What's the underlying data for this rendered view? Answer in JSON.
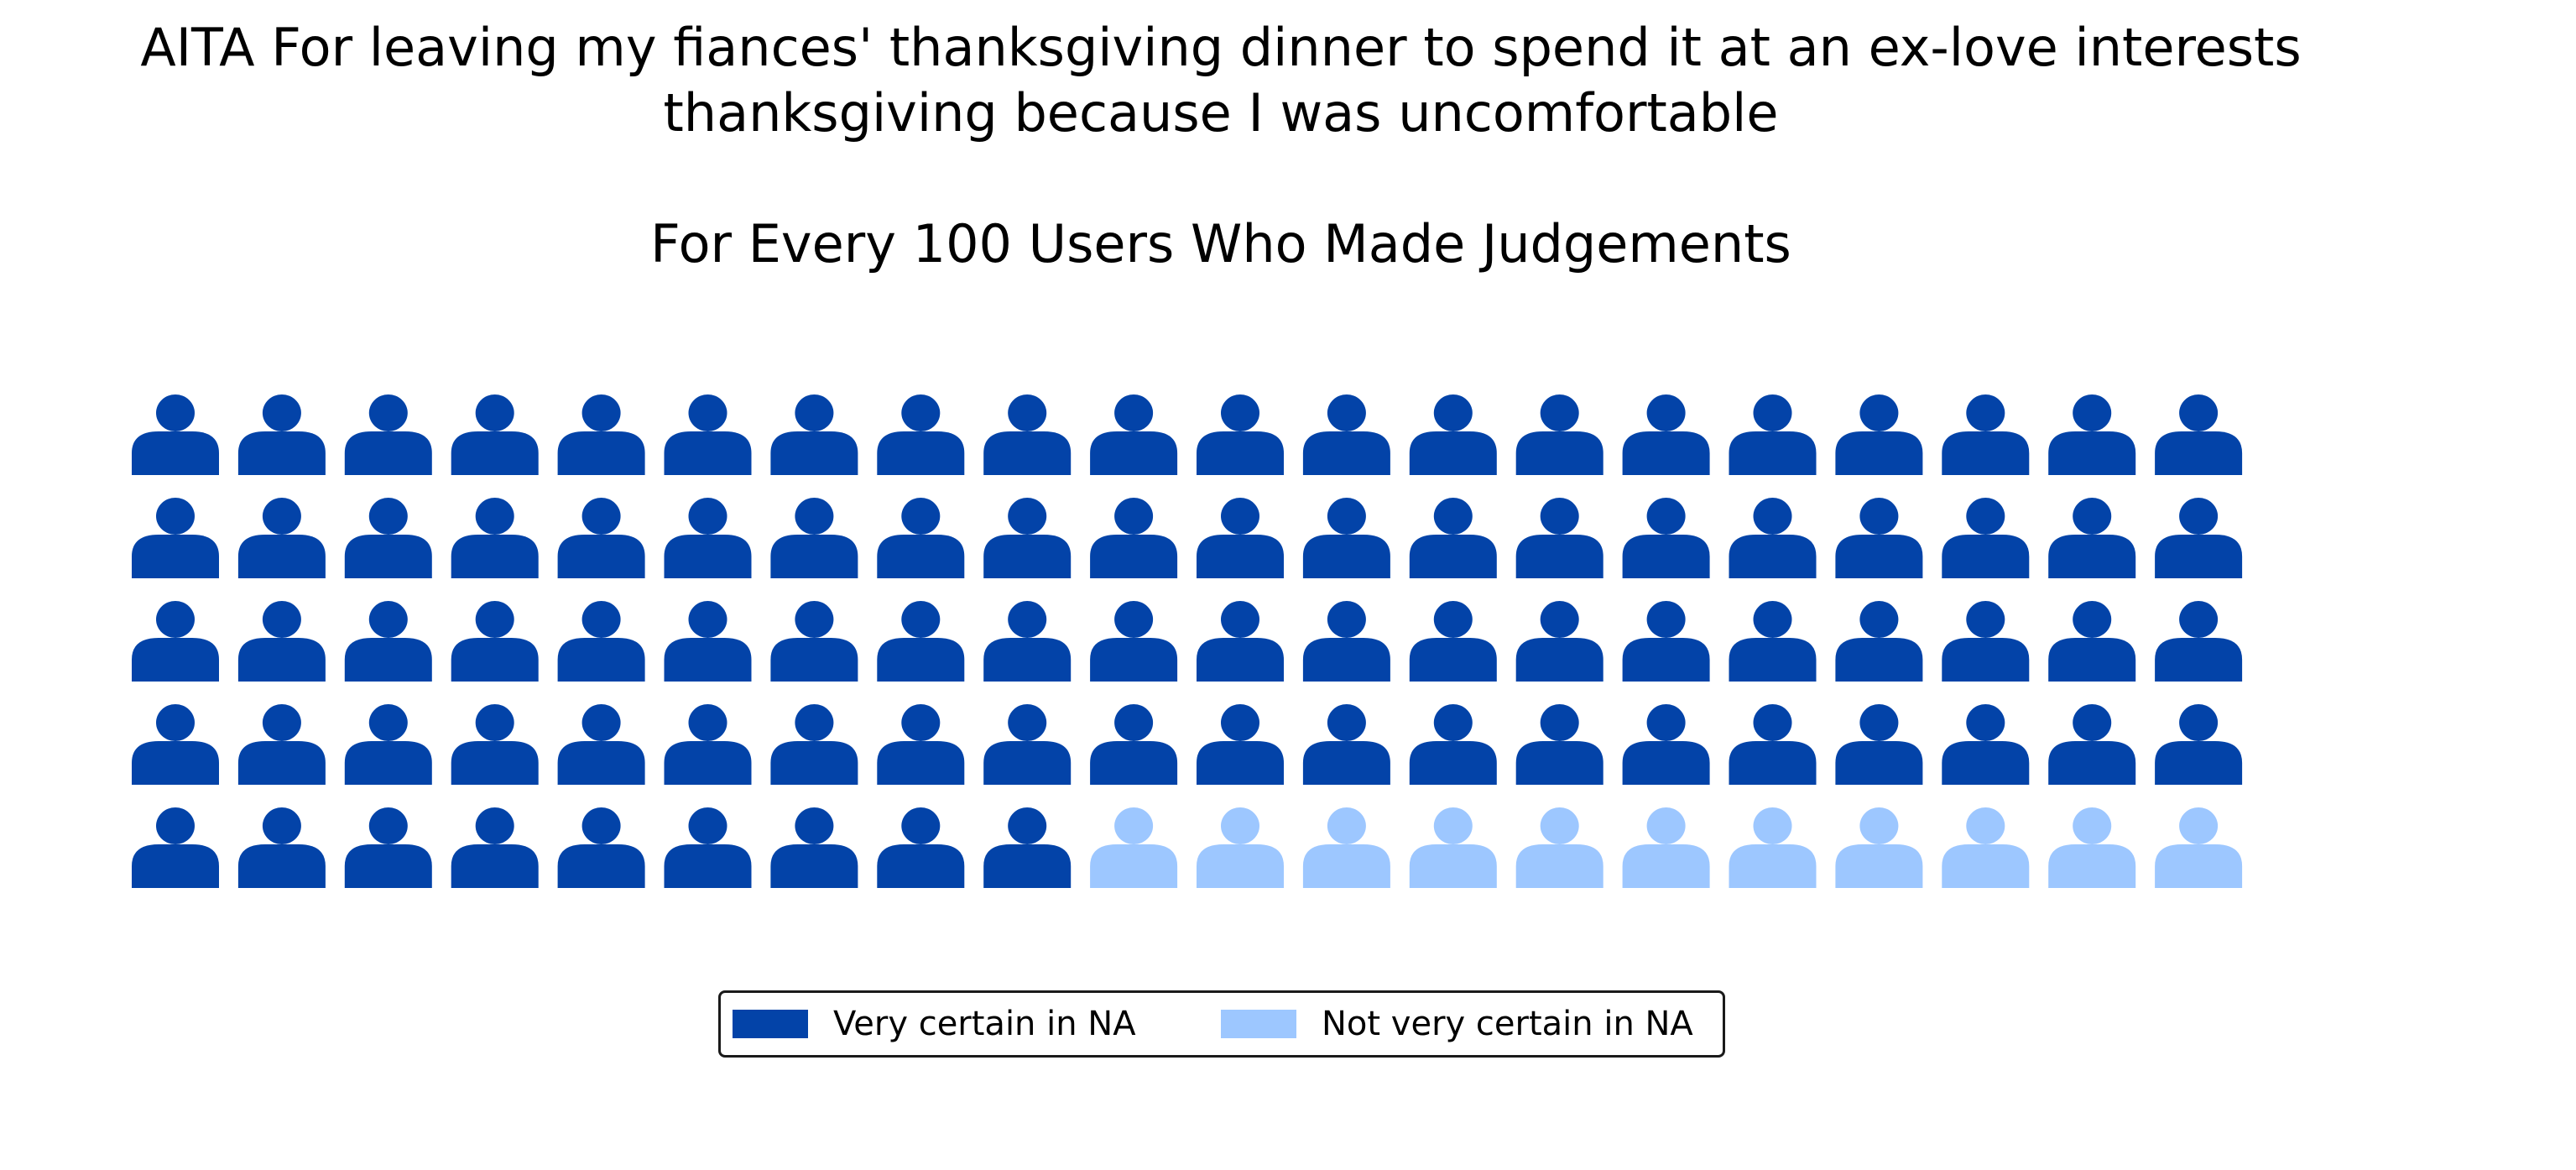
{
  "chart_data": {
    "type": "waffle",
    "title_lines": [
      "AITA For leaving my fiances' thanksgiving dinner to spend it at an ex-love interests",
      "thanksgiving because I was uncomfortable"
    ],
    "subtitle": "For Every 100 Users Who Made Judgements",
    "rows": 5,
    "columns": 20,
    "icon": "person-icon",
    "series": [
      {
        "name": "Very certain in NA",
        "value": 89,
        "color": "#0343a8"
      },
      {
        "name": "Not very certain in NA",
        "value": 11,
        "color": "#9dc7ff"
      }
    ],
    "legend": {
      "placement": "bottom-center",
      "columns": 2
    }
  }
}
